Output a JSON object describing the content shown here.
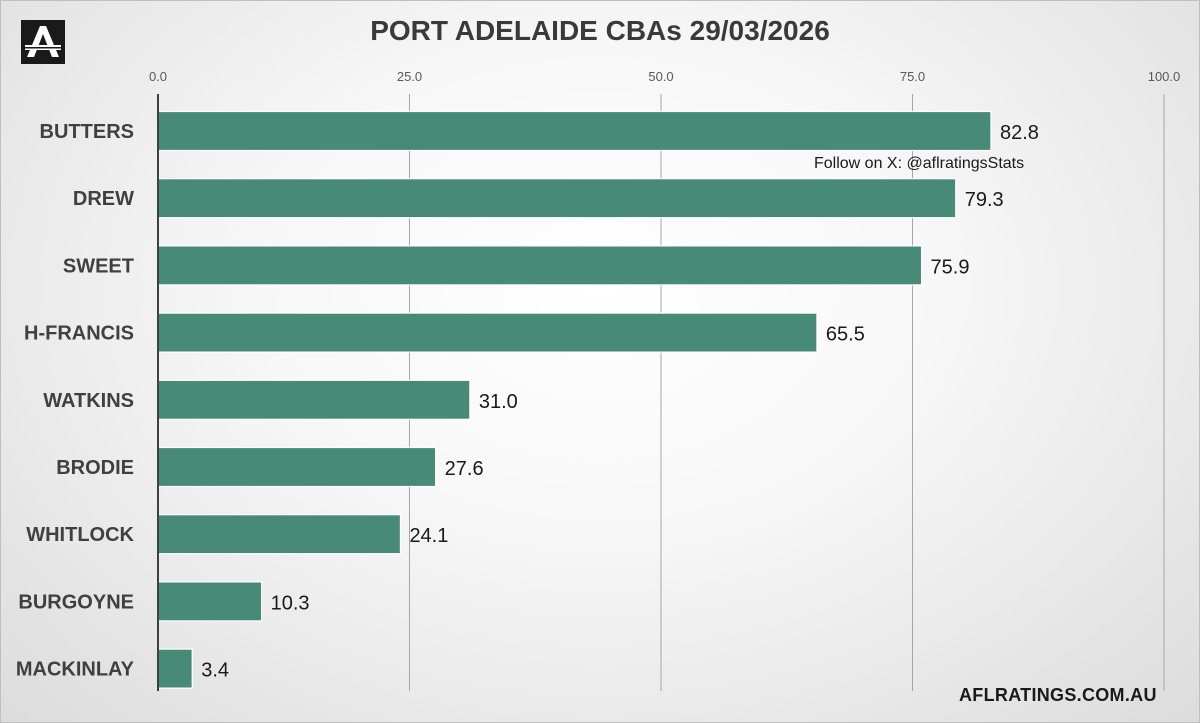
{
  "logo": {
    "icon": "afl-ratings-logo-icon",
    "letter": "A"
  },
  "follow_note": "Follow on X: @aflratingsStats",
  "site_url": "AFLRATINGS.COM.AU",
  "colors": {
    "bar": "#478a77",
    "bar_border": "#ffffff",
    "grid": "#a6a6a6",
    "axis": "#404040"
  },
  "chart_data": {
    "type": "bar",
    "orientation": "horizontal",
    "title": "PORT ADELAIDE CBAs 29/03/2026",
    "categories": [
      "BUTTERS",
      "DREW",
      "SWEET",
      "H-FRANCIS",
      "WATKINS",
      "BRODIE",
      "WHITLOCK",
      "BURGOYNE",
      "MACKINLAY"
    ],
    "values": [
      82.8,
      79.3,
      75.9,
      65.5,
      31.0,
      27.6,
      24.1,
      10.3,
      3.4
    ],
    "value_labels": [
      "82.8",
      "79.3",
      "75.9",
      "65.5",
      "31.0",
      "27.6",
      "24.1",
      "10.3",
      "3.4"
    ],
    "xlim": [
      0,
      100
    ],
    "ticks": [
      0,
      25,
      50,
      75,
      100
    ],
    "tick_labels": [
      "0.0",
      "25.0",
      "50.0",
      "75.0",
      "100.0"
    ],
    "axis_position": "top",
    "grid": true,
    "legend": "none",
    "xlabel": "",
    "ylabel": ""
  }
}
